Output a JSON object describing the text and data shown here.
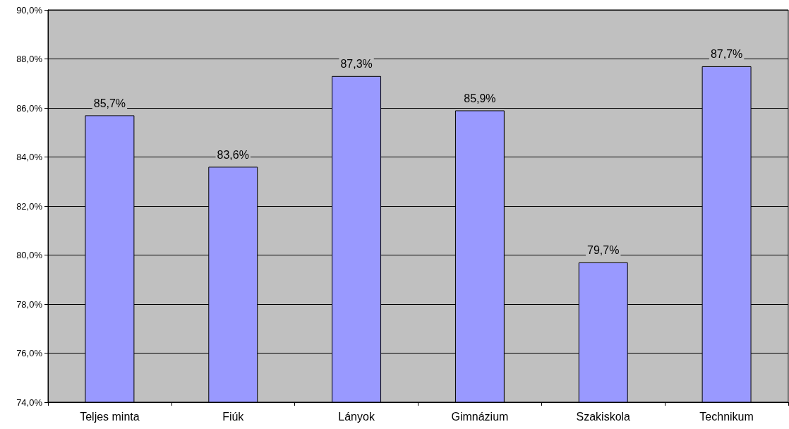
{
  "chart_data": {
    "type": "bar",
    "categories": [
      "Teljes minta",
      "Fiúk",
      "Lányok",
      "Gimnázium",
      "Szakiskola",
      "Technikum"
    ],
    "values": [
      85.7,
      83.6,
      87.3,
      85.9,
      79.7,
      87.7
    ],
    "value_labels": [
      "85,7%",
      "83,6%",
      "87,3%",
      "85,9%",
      "79,7%",
      "87,7%"
    ],
    "color": "#9999ff",
    "ylim": [
      74,
      90
    ],
    "yticks": [
      {
        "value": 74,
        "label": "74,0%"
      },
      {
        "value": 76,
        "label": "76,0%"
      },
      {
        "value": 78,
        "label": "78,0%"
      },
      {
        "value": 80,
        "label": "80,0%"
      },
      {
        "value": 82,
        "label": "82,0%"
      },
      {
        "value": 84,
        "label": "84,0%"
      },
      {
        "value": 86,
        "label": "86,0%"
      },
      {
        "value": 88,
        "label": "88,0%"
      },
      {
        "value": 90,
        "label": "90,0%"
      }
    ],
    "grid": "y"
  }
}
